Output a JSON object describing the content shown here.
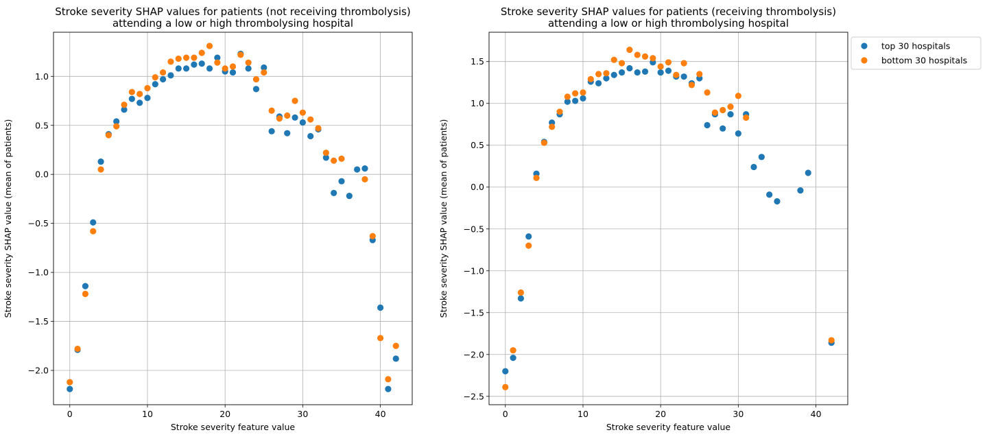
{
  "chart_data": [
    {
      "type": "scatter",
      "title_lines": [
        "Stroke severity SHAP values for patients (not receiving thrombolysis)",
        "attending a low or high thrombolysing hospital"
      ],
      "xlabel": "Stroke severity feature value",
      "ylabel": "Stroke severity SHAP value (mean of patients)",
      "xlim": [
        -2.1,
        44.1
      ],
      "ylim": [
        -2.35,
        1.45
      ],
      "xticks": [
        0,
        10,
        20,
        30,
        40
      ],
      "xtick_labels": [
        "0",
        "10",
        "20",
        "30",
        "40"
      ],
      "yticks": [
        -2.0,
        -1.5,
        -1.0,
        -0.5,
        0.0,
        0.5,
        1.0
      ],
      "ytick_labels": [
        "−2.0",
        "−1.5",
        "−1.0",
        "−0.5",
        "0.0",
        "0.5",
        "1.0"
      ],
      "grid": true,
      "series": [
        {
          "color": "#1f77b4",
          "x": [
            0,
            1,
            2,
            3,
            4,
            5,
            6,
            7,
            8,
            9,
            10,
            11,
            12,
            13,
            14,
            15,
            16,
            17,
            18,
            19,
            20,
            21,
            22,
            23,
            24,
            25,
            26,
            27,
            28,
            29,
            30,
            31,
            32,
            33,
            34,
            35,
            36,
            37,
            38,
            39,
            40,
            41,
            42
          ],
          "y": [
            -2.19,
            -1.79,
            -1.14,
            -0.49,
            0.13,
            0.41,
            0.54,
            0.66,
            0.77,
            0.73,
            0.78,
            0.92,
            0.97,
            1.01,
            1.08,
            1.08,
            1.12,
            1.13,
            1.08,
            1.19,
            1.05,
            1.04,
            1.23,
            1.08,
            0.87,
            1.09,
            0.44,
            0.59,
            0.42,
            0.58,
            0.53,
            0.39,
            0.46,
            0.17,
            -0.19,
            -0.07,
            -0.22,
            0.05,
            0.06,
            -0.67,
            -1.36,
            -2.19,
            -1.88
          ]
        },
        {
          "color": "#ff7f0e",
          "x": [
            0,
            1,
            2,
            3,
            4,
            5,
            6,
            7,
            8,
            9,
            10,
            11,
            12,
            13,
            14,
            15,
            16,
            17,
            18,
            19,
            20,
            21,
            22,
            23,
            24,
            25,
            26,
            27,
            28,
            29,
            30,
            31,
            32,
            33,
            34,
            35,
            38,
            39,
            40,
            41,
            42
          ],
          "y": [
            -2.12,
            -1.78,
            -1.22,
            -0.58,
            0.05,
            0.4,
            0.49,
            0.71,
            0.84,
            0.82,
            0.88,
            0.99,
            1.04,
            1.15,
            1.18,
            1.19,
            1.19,
            1.24,
            1.31,
            1.14,
            1.08,
            1.1,
            1.22,
            1.14,
            0.97,
            1.04,
            0.65,
            0.57,
            0.6,
            0.75,
            0.63,
            0.56,
            0.47,
            0.22,
            0.14,
            0.16,
            -0.05,
            -0.63,
            -1.67,
            -2.09,
            -1.75
          ]
        }
      ]
    },
    {
      "type": "scatter",
      "title_lines": [
        "Stroke severity SHAP values for patients (receiving thrombolysis)",
        "attending a low or high thrombolysing hospital"
      ],
      "xlabel": "Stroke severity feature value",
      "ylabel": "Stroke severity SHAP value (mean of patients)",
      "xlim": [
        -2.1,
        44.1
      ],
      "ylim": [
        -2.6,
        1.85
      ],
      "xticks": [
        0,
        10,
        20,
        30,
        40
      ],
      "xtick_labels": [
        "0",
        "10",
        "20",
        "30",
        "40"
      ],
      "yticks": [
        -2.5,
        -2.0,
        -1.5,
        -1.0,
        -0.5,
        0.0,
        0.5,
        1.0,
        1.5
      ],
      "ytick_labels": [
        "−2.5",
        "−2.0",
        "−1.5",
        "−1.0",
        "−0.5",
        "0.0",
        "0.5",
        "1.0",
        "1.5"
      ],
      "grid": true,
      "legend_position": "upper-right-outside",
      "series": [
        {
          "name": "top 30 hospitals",
          "color": "#1f77b4",
          "x": [
            0,
            1,
            2,
            3,
            4,
            5,
            6,
            7,
            8,
            9,
            10,
            11,
            12,
            13,
            14,
            15,
            16,
            17,
            18,
            19,
            20,
            21,
            22,
            23,
            24,
            25,
            26,
            27,
            28,
            29,
            30,
            31,
            32,
            33,
            34,
            35,
            38,
            39,
            42
          ],
          "y": [
            -2.2,
            -2.04,
            -1.33,
            -0.59,
            0.16,
            0.54,
            0.77,
            0.87,
            1.02,
            1.03,
            1.06,
            1.26,
            1.24,
            1.3,
            1.34,
            1.37,
            1.42,
            1.37,
            1.38,
            1.49,
            1.37,
            1.39,
            1.32,
            1.32,
            1.24,
            1.3,
            0.74,
            0.87,
            0.7,
            0.87,
            0.64,
            0.87,
            0.24,
            0.36,
            -0.09,
            -0.17,
            -0.04,
            0.17,
            -1.86
          ]
        },
        {
          "name": "bottom 30 hospitals",
          "color": "#ff7f0e",
          "x": [
            0,
            1,
            2,
            3,
            4,
            5,
            6,
            7,
            8,
            9,
            10,
            11,
            12,
            13,
            14,
            15,
            16,
            17,
            18,
            19,
            20,
            21,
            22,
            23,
            24,
            25,
            26,
            27,
            28,
            29,
            30,
            31,
            42
          ],
          "y": [
            -2.39,
            -1.95,
            -1.26,
            -0.7,
            0.11,
            0.53,
            0.72,
            0.9,
            1.08,
            1.12,
            1.13,
            1.29,
            1.35,
            1.36,
            1.52,
            1.48,
            1.64,
            1.58,
            1.56,
            1.54,
            1.44,
            1.49,
            1.34,
            1.48,
            1.22,
            1.35,
            1.13,
            0.89,
            0.92,
            0.96,
            1.09,
            0.83,
            -1.83
          ]
        }
      ]
    }
  ]
}
